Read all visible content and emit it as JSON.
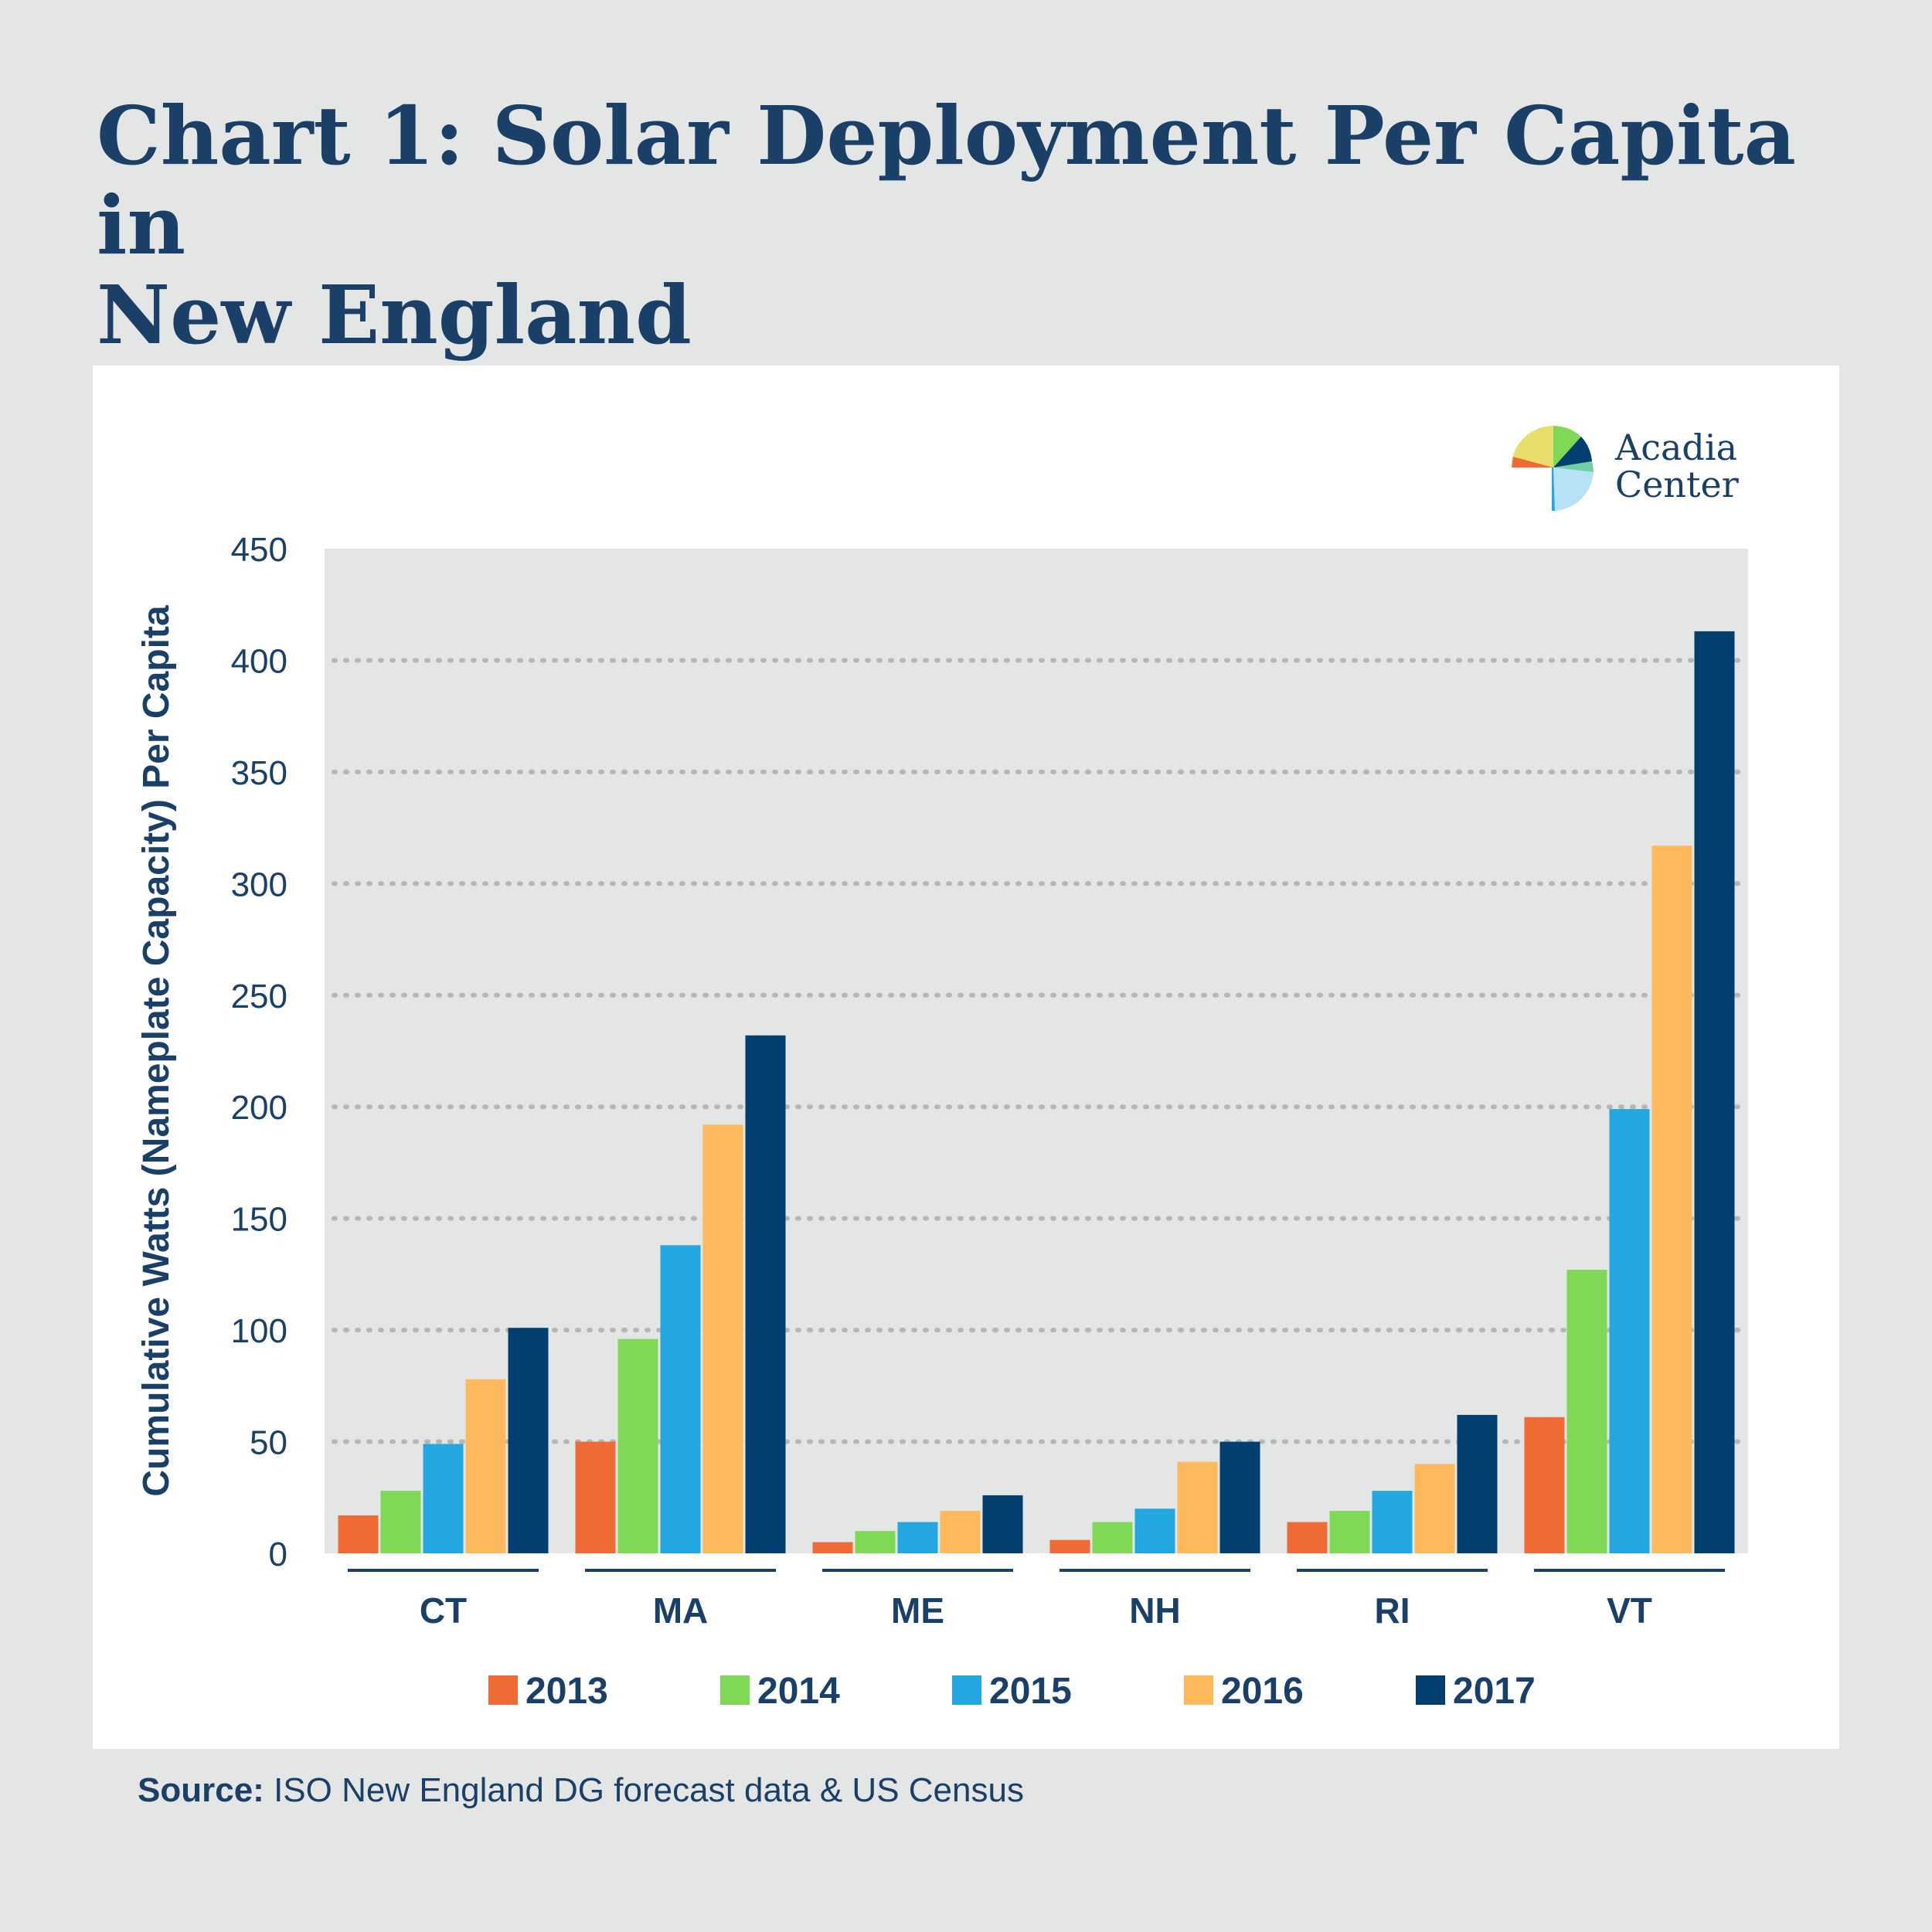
{
  "title_lines": [
    "Chart 1: Solar Deployment Per Capita in",
    "New England"
  ],
  "logo": {
    "line1": "Acadia",
    "line2": "Center"
  },
  "source": {
    "label": "Source:",
    "text": "ISO New England DG forecast data & US Census"
  },
  "colors": {
    "2013": "#f06a35",
    "2014": "#7fd957",
    "2015": "#22a7e0",
    "2016": "#fdb95b",
    "2017": "#003f6e",
    "text": "#1b4067",
    "plot_bg": "#e4e6e6",
    "grid": "#b5b7b7"
  },
  "chart_data": {
    "type": "bar",
    "title": "Chart 1: Solar Deployment Per Capita in New England",
    "ylabel": "Cumulative Watts (Nameplate Capacity) Per Capita",
    "xlabel": "",
    "ylim": [
      0,
      450
    ],
    "yticks": [
      0,
      50,
      100,
      150,
      200,
      250,
      300,
      350,
      400,
      450
    ],
    "grid": true,
    "legend_position": "bottom",
    "categories": [
      "CT",
      "MA",
      "ME",
      "NH",
      "RI",
      "VT"
    ],
    "series": [
      {
        "name": "2013",
        "values": [
          17,
          50,
          5,
          6,
          14,
          61
        ]
      },
      {
        "name": "2014",
        "values": [
          28,
          96,
          10,
          14,
          19,
          127
        ]
      },
      {
        "name": "2015",
        "values": [
          49,
          138,
          14,
          20,
          28,
          199
        ]
      },
      {
        "name": "2016",
        "values": [
          78,
          192,
          19,
          41,
          40,
          317
        ]
      },
      {
        "name": "2017",
        "values": [
          101,
          232,
          26,
          50,
          62,
          413
        ]
      }
    ]
  }
}
